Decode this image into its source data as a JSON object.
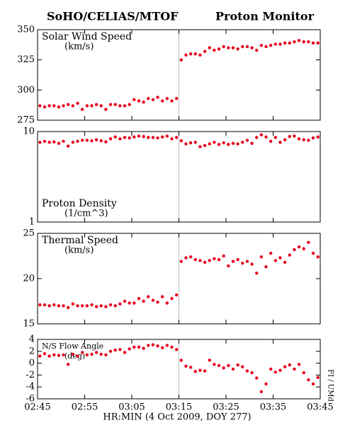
{
  "header": {
    "left": "SoHO/CELIAS/MTOF",
    "right": "Proton Monitor",
    "side_note": "FI / UMd",
    "x_label": "HR:MIN (4 Oct 2009, DOY 277)"
  },
  "chart_data": [
    {
      "type": "scatter",
      "title": "Solar Wind Speed",
      "subtitle": "(km/s)",
      "color": "#e8001c",
      "log": false,
      "vline": 195,
      "xlim": [
        165,
        225
      ],
      "xticks": [
        {
          "value": 165,
          "label": "02:45"
        },
        {
          "value": 175,
          "label": "02:55"
        },
        {
          "value": 185,
          "label": "03:05"
        },
        {
          "value": 195,
          "label": "03:15"
        },
        {
          "value": 205,
          "label": "03:25"
        },
        {
          "value": 215,
          "label": "03:35"
        },
        {
          "value": 225,
          "label": "03:45"
        }
      ],
      "ylim": [
        275,
        350
      ],
      "yticks": [
        275,
        300,
        325,
        350
      ],
      "x": [
        165.5,
        166.5,
        167.5,
        168.5,
        169.5,
        170.5,
        171.5,
        172.5,
        173.5,
        174.5,
        175.5,
        176.5,
        177.5,
        178.5,
        179.5,
        180.5,
        181.5,
        182.5,
        183.5,
        184.5,
        185.5,
        186.5,
        187.5,
        188.5,
        189.5,
        190.5,
        191.5,
        192.5,
        193.5,
        194.5,
        195.5,
        196.5,
        197.5,
        198.5,
        199.5,
        200.5,
        201.5,
        202.5,
        203.5,
        204.5,
        205.5,
        206.5,
        207.5,
        208.5,
        209.5,
        210.5,
        211.5,
        212.5,
        213.5,
        214.5,
        215.5,
        216.5,
        217.5,
        218.5,
        219.5,
        220.5,
        221.5,
        222.5,
        223.5,
        224.5
      ],
      "values": [
        287,
        286,
        287,
        287,
        286,
        287,
        288,
        287,
        289,
        284,
        287,
        287,
        288,
        287,
        284,
        288,
        288,
        287,
        287,
        288,
        292,
        291,
        290,
        293,
        292,
        294,
        291,
        293,
        291,
        293,
        325,
        329,
        330,
        330,
        329,
        332,
        335,
        333,
        334,
        336,
        335,
        335,
        334,
        336,
        336,
        335,
        333,
        337,
        336,
        337,
        338,
        338,
        339,
        339,
        340,
        341,
        340,
        340,
        339,
        339
      ]
    },
    {
      "type": "scatter",
      "title": "Proton Density",
      "subtitle": "(1/cm^3)",
      "color": "#e8001c",
      "log": true,
      "vline": 195,
      "xlim": [
        165,
        225
      ],
      "xticks": [
        {
          "value": 165,
          "label": "02:45"
        },
        {
          "value": 175,
          "label": "02:55"
        },
        {
          "value": 185,
          "label": "03:05"
        },
        {
          "value": 195,
          "label": "03:15"
        },
        {
          "value": 205,
          "label": "03:25"
        },
        {
          "value": 215,
          "label": "03:35"
        },
        {
          "value": 225,
          "label": "03:45"
        }
      ],
      "ylim": [
        1,
        10
      ],
      "yticks": [
        1,
        10
      ],
      "x": [
        165.5,
        166.5,
        167.5,
        168.5,
        169.5,
        170.5,
        171.5,
        172.5,
        173.5,
        174.5,
        175.5,
        176.5,
        177.5,
        178.5,
        179.5,
        180.5,
        181.5,
        182.5,
        183.5,
        184.5,
        185.5,
        186.5,
        187.5,
        188.5,
        189.5,
        190.5,
        191.5,
        192.5,
        193.5,
        194.5,
        195.5,
        196.5,
        197.5,
        198.5,
        199.5,
        200.5,
        201.5,
        202.5,
        203.5,
        204.5,
        205.5,
        206.5,
        207.5,
        208.5,
        209.5,
        210.5,
        211.5,
        212.5,
        213.5,
        214.5,
        215.5,
        216.5,
        217.5,
        218.5,
        219.5,
        220.5,
        221.5,
        222.5,
        223.5,
        224.5
      ],
      "values": [
        7.6,
        7.8,
        7.6,
        7.7,
        7.4,
        7.8,
        6.9,
        7.6,
        7.8,
        8.0,
        8.0,
        7.9,
        8.1,
        7.9,
        7.7,
        8.3,
        8.7,
        8.3,
        8.6,
        8.5,
        8.7,
        8.9,
        8.8,
        8.6,
        8.6,
        8.5,
        8.7,
        8.9,
        8.3,
        8.6,
        7.9,
        7.3,
        7.5,
        7.6,
        6.8,
        7.0,
        7.3,
        7.6,
        7.2,
        7.5,
        7.2,
        7.4,
        7.3,
        7.6,
        8.0,
        7.4,
        8.6,
        9.2,
        8.7,
        7.8,
        8.6,
        7.6,
        8.1,
        8.8,
        8.9,
        8.3,
        8.1,
        8.0,
        8.5,
        8.7
      ]
    },
    {
      "type": "scatter",
      "title": "Thermal Speed",
      "subtitle": "(km/s)",
      "color": "#e8001c",
      "log": false,
      "vline": 195,
      "xlim": [
        165,
        225
      ],
      "xticks": [
        {
          "value": 165,
          "label": "02:45"
        },
        {
          "value": 175,
          "label": "02:55"
        },
        {
          "value": 185,
          "label": "03:05"
        },
        {
          "value": 195,
          "label": "03:15"
        },
        {
          "value": 205,
          "label": "03:25"
        },
        {
          "value": 215,
          "label": "03:35"
        },
        {
          "value": 225,
          "label": "03:45"
        }
      ],
      "ylim": [
        15,
        25
      ],
      "yticks": [
        15,
        20,
        25
      ],
      "x": [
        165.5,
        166.5,
        167.5,
        168.5,
        169.5,
        170.5,
        171.5,
        172.5,
        173.5,
        174.5,
        175.5,
        176.5,
        177.5,
        178.5,
        179.5,
        180.5,
        181.5,
        182.5,
        183.5,
        184.5,
        185.5,
        186.5,
        187.5,
        188.5,
        189.5,
        190.5,
        191.5,
        192.5,
        193.5,
        194.5,
        195.5,
        196.5,
        197.5,
        198.5,
        199.5,
        200.5,
        201.5,
        202.5,
        203.5,
        204.5,
        205.5,
        206.5,
        207.5,
        208.5,
        209.5,
        210.5,
        211.5,
        212.5,
        213.5,
        214.5,
        215.5,
        216.5,
        217.5,
        218.5,
        219.5,
        220.5,
        221.5,
        222.5,
        223.5,
        224.5
      ],
      "values": [
        17.1,
        17.1,
        17.0,
        17.1,
        17.0,
        17.0,
        16.8,
        17.2,
        17.0,
        17.0,
        17.0,
        17.1,
        16.9,
        17.0,
        16.9,
        17.1,
        17.0,
        17.2,
        17.5,
        17.3,
        17.3,
        17.8,
        17.5,
        18.0,
        17.6,
        17.4,
        18.0,
        17.3,
        17.8,
        18.2,
        21.9,
        22.3,
        22.4,
        22.1,
        22.0,
        21.8,
        22.0,
        22.2,
        22.1,
        22.5,
        21.4,
        21.9,
        22.1,
        21.7,
        21.9,
        21.6,
        20.6,
        22.4,
        21.3,
        22.8,
        22.0,
        22.3,
        21.8,
        22.6,
        23.2,
        23.5,
        23.3,
        24.0,
        22.8,
        22.4
      ]
    },
    {
      "type": "scatter",
      "title": "N/S Flow Angle",
      "subtitle": "(deg)",
      "color": "#e8001c",
      "log": false,
      "vline": 195,
      "xlim": [
        165,
        225
      ],
      "xticks": [
        {
          "value": 165,
          "label": "02:45"
        },
        {
          "value": 175,
          "label": "02:55"
        },
        {
          "value": 185,
          "label": "03:05"
        },
        {
          "value": 195,
          "label": "03:15"
        },
        {
          "value": 205,
          "label": "03:25"
        },
        {
          "value": 215,
          "label": "03:35"
        },
        {
          "value": 225,
          "label": "03:45"
        }
      ],
      "ylim": [
        -6,
        4
      ],
      "yticks": [
        -6,
        -4,
        -2,
        0,
        2,
        4
      ],
      "x": [
        165.5,
        166.5,
        167.5,
        168.5,
        169.5,
        170.5,
        171.5,
        172.5,
        173.5,
        174.5,
        175.5,
        176.5,
        177.5,
        178.5,
        179.5,
        180.5,
        181.5,
        182.5,
        183.5,
        184.5,
        185.5,
        186.5,
        187.5,
        188.5,
        189.5,
        190.5,
        191.5,
        192.5,
        193.5,
        194.5,
        195.5,
        196.5,
        197.5,
        198.5,
        199.5,
        200.5,
        201.5,
        202.5,
        203.5,
        204.5,
        205.5,
        206.5,
        207.5,
        208.5,
        209.5,
        210.5,
        211.5,
        212.5,
        213.5,
        214.5,
        215.5,
        216.5,
        217.5,
        218.5,
        219.5,
        220.5,
        221.5,
        222.5,
        223.5,
        224.5
      ],
      "values": [
        1.2,
        1.6,
        1.2,
        1.4,
        1.3,
        1.4,
        -0.2,
        1.5,
        1.2,
        1.8,
        1.4,
        1.5,
        1.8,
        1.5,
        1.4,
        2.0,
        2.2,
        2.3,
        1.8,
        2.4,
        2.7,
        2.7,
        2.5,
        3.0,
        3.1,
        2.9,
        2.6,
        3.0,
        2.7,
        2.3,
        0.5,
        -0.5,
        -0.7,
        -1.4,
        -1.2,
        -1.3,
        0.5,
        -0.2,
        -0.4,
        -0.8,
        -0.4,
        -1.0,
        -0.3,
        -0.6,
        -1.3,
        -1.6,
        -2.5,
        -4.8,
        -3.5,
        -1.0,
        -1.5,
        -1.2,
        -0.6,
        -0.3,
        -1.0,
        -0.2,
        -1.6,
        -2.8,
        -3.5,
        -2.4
      ]
    }
  ]
}
